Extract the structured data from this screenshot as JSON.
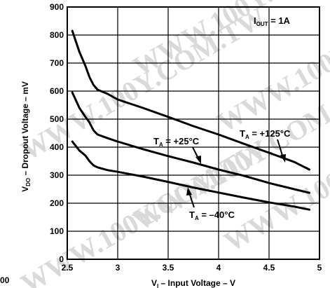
{
  "watermark": "WWW.100Y.COM.TW",
  "corner_fragment": "00",
  "chart_data": {
    "type": "line",
    "title": "",
    "xlabel": {
      "main": "V",
      "sub": "I",
      "rest": " – Input Voltage – V"
    },
    "ylabel": {
      "main": "V",
      "sub": "DO",
      "rest": " – Dropout Voltage – mV"
    },
    "xlim": [
      2.5,
      5
    ],
    "ylim": [
      0,
      900
    ],
    "x_ticks": [
      2.5,
      3,
      3.5,
      4,
      4.5,
      5
    ],
    "x_tick_labels": [
      "2.5",
      "3",
      "3.5",
      "4",
      "4.5",
      "5"
    ],
    "y_ticks": [
      0,
      100,
      200,
      300,
      400,
      500,
      600,
      700,
      800,
      900
    ],
    "y_tick_labels": [
      "0",
      "100",
      "200",
      "300",
      "400",
      "500",
      "600",
      "700",
      "800",
      "900"
    ],
    "grid": true,
    "annotation": {
      "main": "I",
      "sub": "OUT",
      "rest": " = 1A"
    },
    "series": [
      {
        "name": "+125°C",
        "label": {
          "main": "T",
          "sub": "A",
          "rest": " = +125°C"
        },
        "color": "#000000",
        "points": [
          [
            2.55,
            815
          ],
          [
            2.62,
            740
          ],
          [
            2.68,
            690
          ],
          [
            2.72,
            650
          ],
          [
            2.76,
            622
          ],
          [
            2.8,
            605
          ],
          [
            2.9,
            590
          ],
          [
            3.0,
            570
          ],
          [
            3.25,
            540
          ],
          [
            3.5,
            508
          ],
          [
            3.75,
            475
          ],
          [
            4.0,
            445
          ],
          [
            4.25,
            412
          ],
          [
            4.5,
            380
          ],
          [
            4.75,
            347
          ],
          [
            4.9,
            320
          ]
        ]
      },
      {
        "name": "+25°C",
        "label": {
          "main": "T",
          "sub": "A",
          "rest": " = +25°C"
        },
        "color": "#000000",
        "points": [
          [
            2.55,
            595
          ],
          [
            2.62,
            540
          ],
          [
            2.68,
            508
          ],
          [
            2.72,
            488
          ],
          [
            2.76,
            460
          ],
          [
            2.8,
            445
          ],
          [
            2.9,
            432
          ],
          [
            3.0,
            420
          ],
          [
            3.25,
            393
          ],
          [
            3.5,
            368
          ],
          [
            3.75,
            345
          ],
          [
            4.0,
            320
          ],
          [
            4.25,
            298
          ],
          [
            4.5,
            272
          ],
          [
            4.75,
            250
          ],
          [
            4.9,
            237
          ]
        ]
      },
      {
        "name": "-40°C",
        "label": {
          "main": "T",
          "sub": "A",
          "rest": " = –40°C"
        },
        "color": "#000000",
        "points": [
          [
            2.55,
            420
          ],
          [
            2.62,
            388
          ],
          [
            2.68,
            370
          ],
          [
            2.72,
            350
          ],
          [
            2.76,
            335
          ],
          [
            2.8,
            328
          ],
          [
            2.9,
            318
          ],
          [
            3.0,
            312
          ],
          [
            3.25,
            295
          ],
          [
            3.5,
            276
          ],
          [
            3.75,
            256
          ],
          [
            4.0,
            238
          ],
          [
            4.25,
            220
          ],
          [
            4.5,
            203
          ],
          [
            4.75,
            188
          ],
          [
            4.9,
            177
          ]
        ]
      }
    ]
  }
}
